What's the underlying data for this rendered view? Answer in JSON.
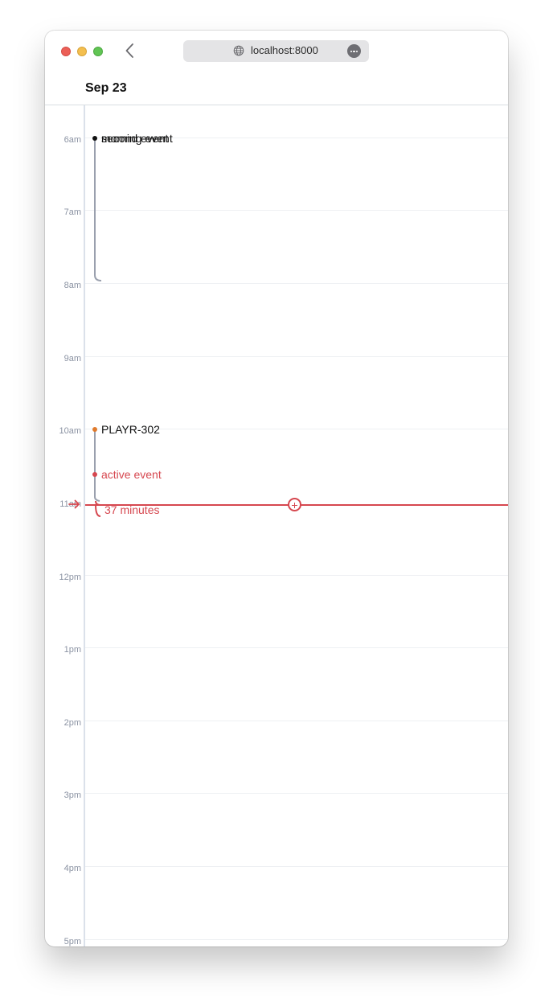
{
  "browser": {
    "url": "localhost:8000"
  },
  "calendar": {
    "date_label": "Sep 23",
    "hours": [
      "6am",
      "7am",
      "8am",
      "9am",
      "10am",
      "11am",
      "12pm",
      "1pm",
      "2pm",
      "3pm",
      "4pm",
      "5pm"
    ],
    "events": {
      "morning_event": "morning event",
      "second_event": "second event",
      "playr": "PLAYR-302",
      "active_event": "active event",
      "duration": "37 minutes"
    }
  },
  "colors": {
    "now": "#d6474f",
    "playr": "#e07a2c",
    "morning_track": "#9aa0ae"
  },
  "icons": [
    "traffic-light-close-icon",
    "traffic-light-minimize-icon",
    "traffic-light-zoom-icon",
    "chevron-left-icon",
    "globe-icon",
    "more-icon",
    "now-arrow-icon",
    "add-event-icon"
  ]
}
